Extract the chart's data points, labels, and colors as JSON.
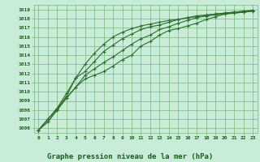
{
  "title": "Graphe pression niveau de la mer (hPa)",
  "background_color": "#c8ecd8",
  "plot_bg_color": "#c8ecd8",
  "grid_color": "#7ab87a",
  "text_color": "#1a5c1a",
  "line_color": "#2d6e2d",
  "ylim": [
    1005.5,
    1019.5
  ],
  "xlim": [
    -0.5,
    23.5
  ],
  "xticks": [
    0,
    1,
    2,
    3,
    4,
    5,
    6,
    7,
    8,
    9,
    10,
    11,
    12,
    13,
    14,
    15,
    16,
    17,
    18,
    19,
    20,
    21,
    22,
    23
  ],
  "yticks": [
    1006,
    1007,
    1008,
    1009,
    1010,
    1011,
    1012,
    1013,
    1014,
    1015,
    1016,
    1017,
    1018,
    1019
  ],
  "series": [
    [
      1005.8,
      1006.7,
      1008.0,
      1009.3,
      1010.5,
      1011.4,
      1011.8,
      1012.2,
      1012.8,
      1013.5,
      1014.0,
      1015.0,
      1015.5,
      1016.2,
      1016.7,
      1016.9,
      1017.2,
      1017.5,
      1017.9,
      1018.2,
      1018.5,
      1018.6,
      1018.7,
      1018.8
    ],
    [
      1005.8,
      1006.7,
      1008.0,
      1009.3,
      1010.5,
      1011.8,
      1012.5,
      1013.2,
      1013.8,
      1014.5,
      1015.2,
      1015.8,
      1016.2,
      1016.8,
      1017.1,
      1017.5,
      1017.8,
      1018.1,
      1018.3,
      1018.5,
      1018.6,
      1018.7,
      1018.8,
      1018.9
    ],
    [
      1005.8,
      1007.0,
      1008.1,
      1009.5,
      1011.5,
      1012.2,
      1013.3,
      1014.4,
      1015.1,
      1015.8,
      1016.3,
      1016.8,
      1017.1,
      1017.3,
      1017.6,
      1017.9,
      1018.1,
      1018.3,
      1018.4,
      1018.5,
      1018.6,
      1018.7,
      1018.8,
      1018.9
    ],
    [
      1005.8,
      1007.0,
      1008.2,
      1009.8,
      1011.5,
      1013.0,
      1014.2,
      1015.2,
      1016.0,
      1016.5,
      1016.9,
      1017.2,
      1017.4,
      1017.6,
      1017.8,
      1017.9,
      1018.1,
      1018.2,
      1018.3,
      1018.4,
      1018.5,
      1018.6,
      1018.7,
      1018.9
    ]
  ],
  "marker": "+",
  "markersize": 3,
  "linewidth": 0.8,
  "title_fontsize": 6.5,
  "tick_fontsize": 4.5
}
